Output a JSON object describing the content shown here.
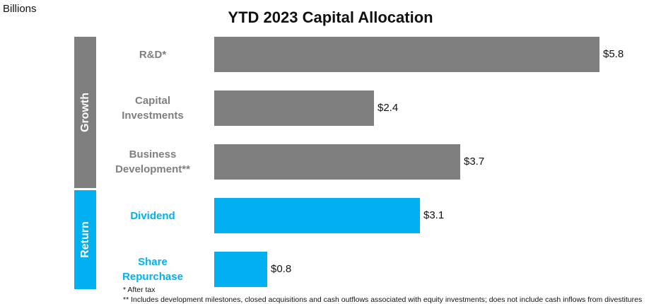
{
  "chart_data": {
    "type": "bar",
    "orientation": "horizontal",
    "title": "YTD 2023 Capital Allocation",
    "unit_label": "Billions",
    "xlim": [
      0,
      5.8
    ],
    "groups": [
      {
        "name": "Growth",
        "color": "#7f7f7f",
        "text_color": "#7f7f7f"
      },
      {
        "name": "Return",
        "color": "#00b0f0",
        "text_color": "#00b0f0"
      }
    ],
    "categories": [
      {
        "lines": [
          "R&D*"
        ],
        "group": 0,
        "value": 5.8,
        "label": "$5.8"
      },
      {
        "lines": [
          "Capital",
          "Investments"
        ],
        "group": 0,
        "value": 2.4,
        "label": "$2.4"
      },
      {
        "lines": [
          "Business",
          "Development**"
        ],
        "group": 0,
        "value": 3.7,
        "label": "$3.7"
      },
      {
        "lines": [
          "Dividend"
        ],
        "group": 1,
        "value": 3.1,
        "label": "$3.1"
      },
      {
        "lines": [
          "Share",
          "Repurchase"
        ],
        "group": 1,
        "value": 0.8,
        "label": "$0.8"
      }
    ],
    "footnotes": [
      "* After tax",
      "** Includes development milestones, closed acquisitions and cash outflows associated with equity investments; does not include cash inflows from divestitures"
    ]
  }
}
